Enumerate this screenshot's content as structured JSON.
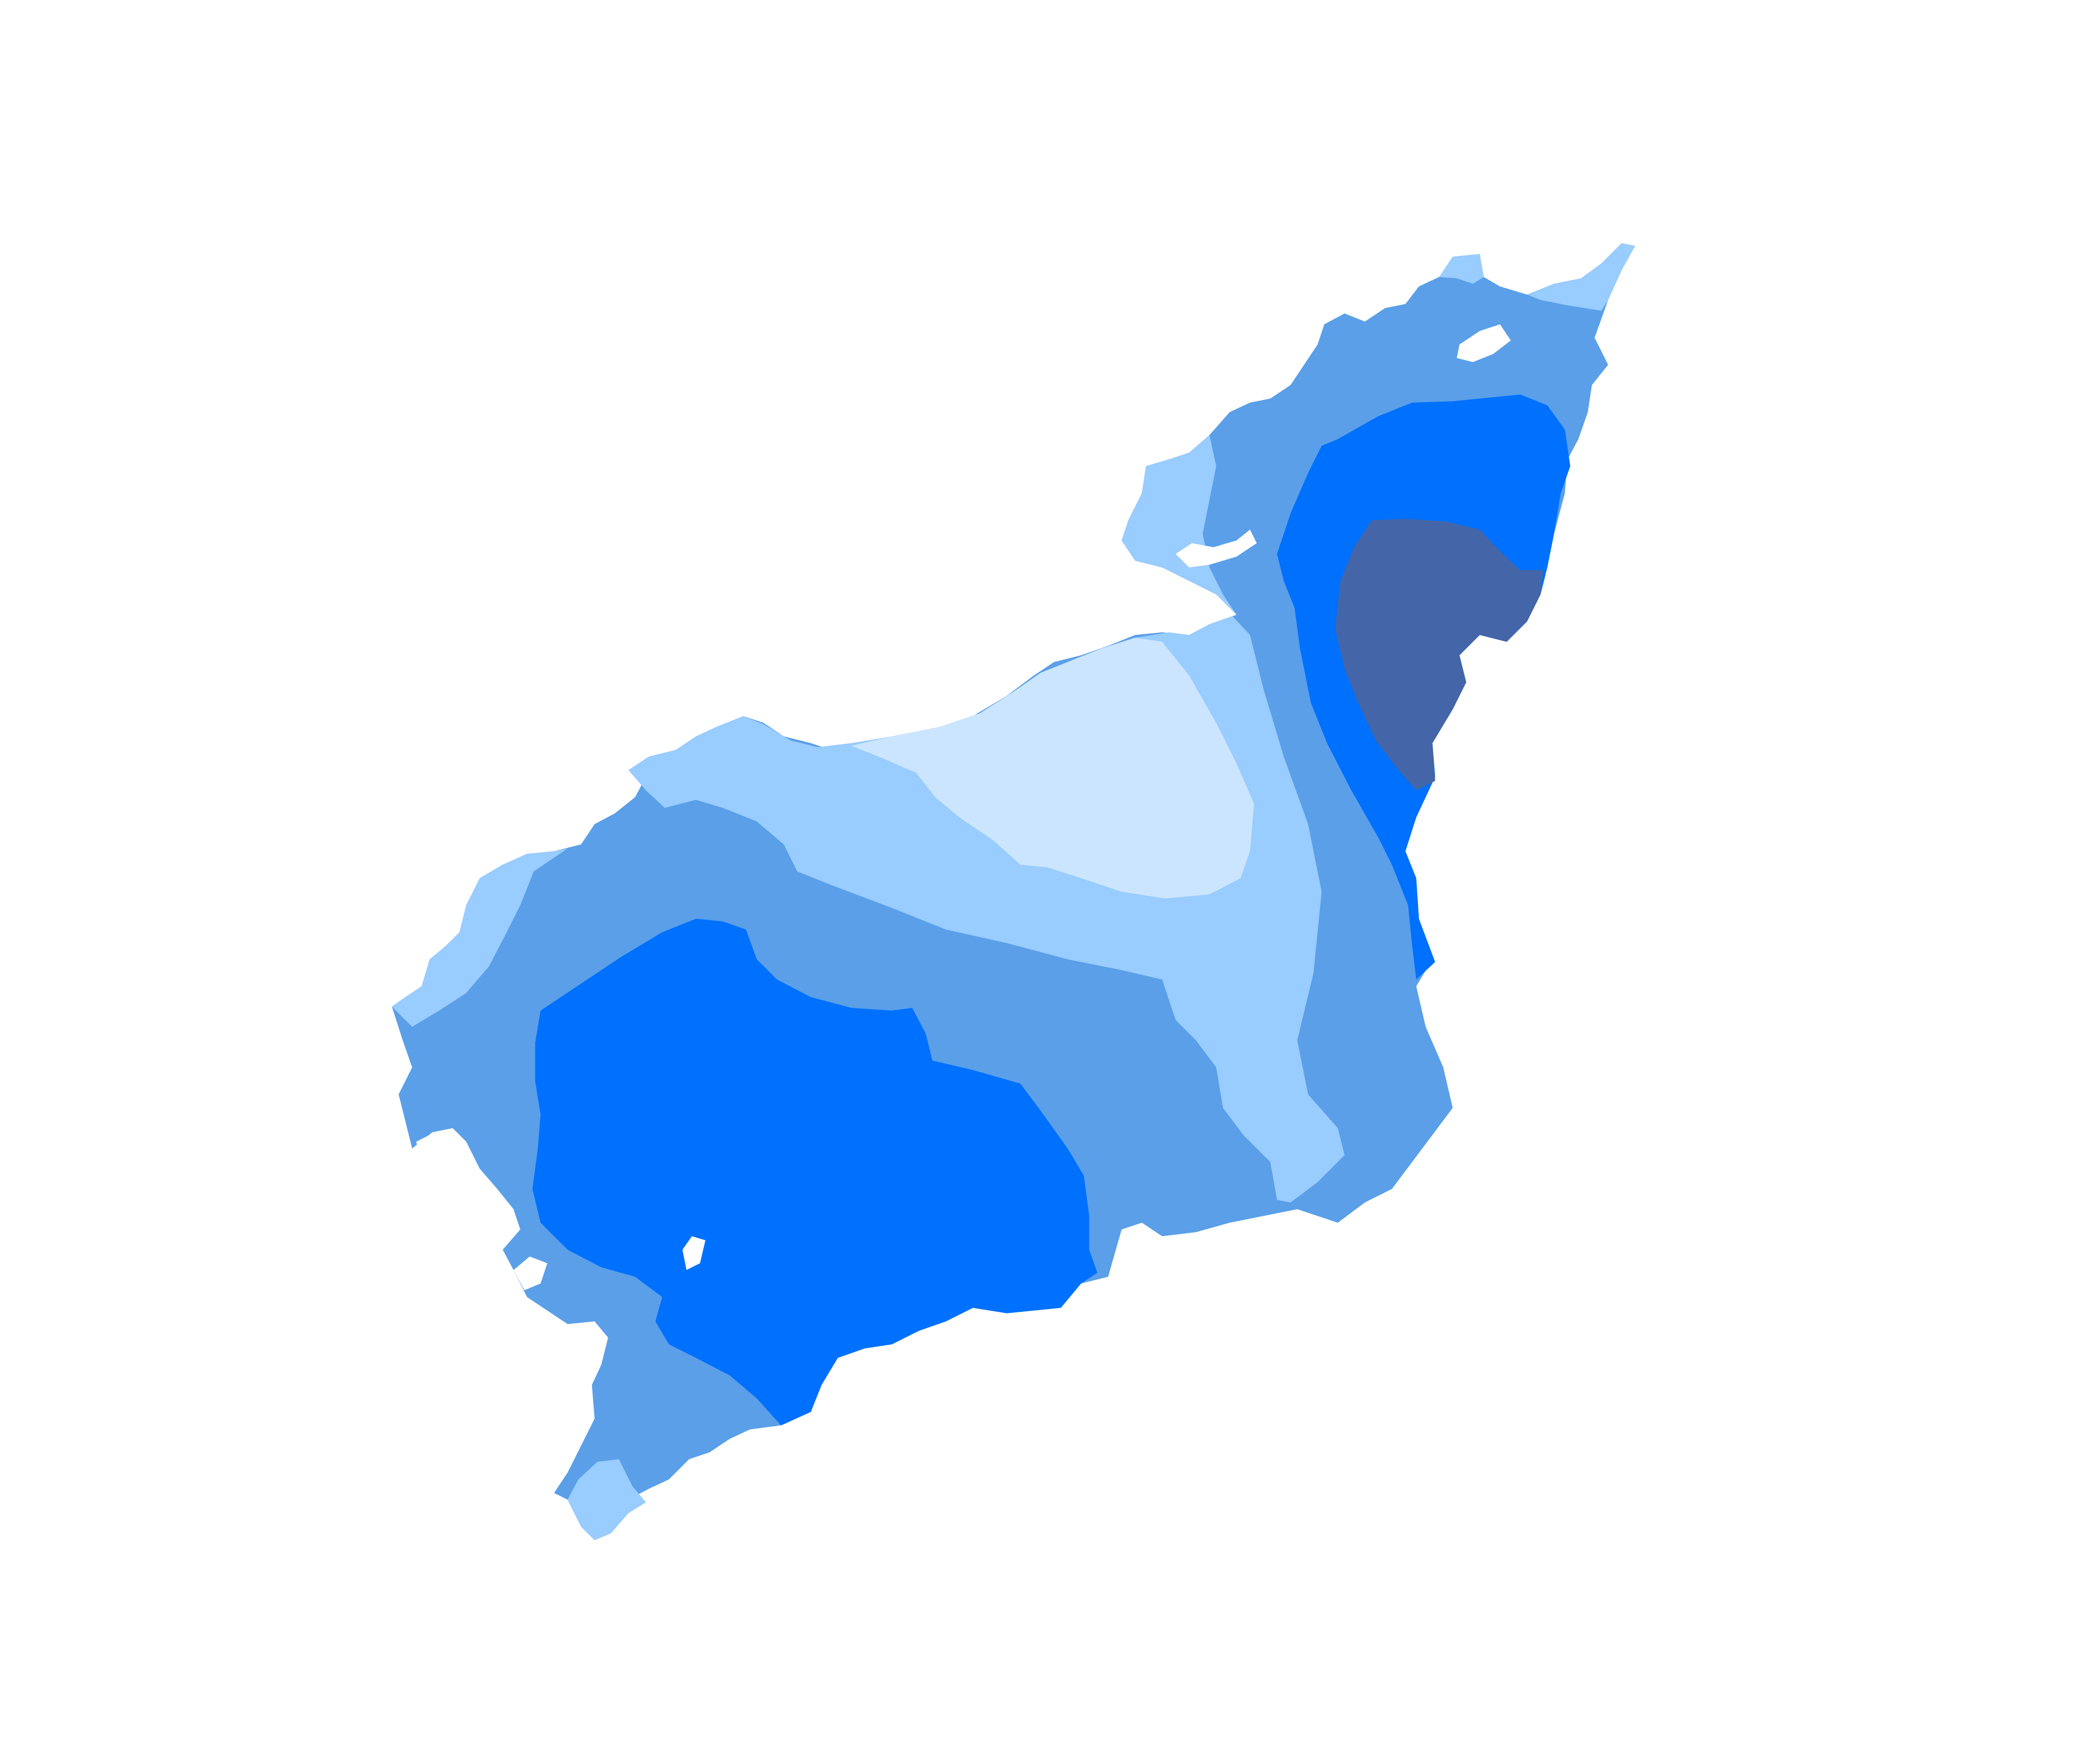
{
  "map": {
    "background": "#ffffff",
    "zones": [
      {
        "name": "zone-lightest",
        "color": "#cce5ff"
      },
      {
        "name": "zone-light",
        "color": "#99ccff"
      },
      {
        "name": "zone-medium",
        "color": "#5a9fe8"
      },
      {
        "name": "zone-strong",
        "color": "#0070ff"
      },
      {
        "name": "zone-darkest",
        "color": "#4466a8"
      }
    ]
  }
}
